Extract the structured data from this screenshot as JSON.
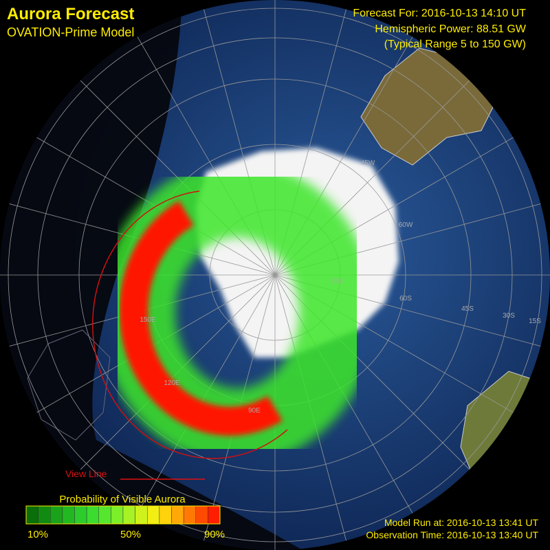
{
  "header": {
    "title": "Aurora Forecast",
    "subtitle": "OVATION-Prime Model",
    "forecast": "Forecast For: 2016-10-13 14:10 UT",
    "power": "Hemispheric Power: 88.51 GW",
    "range": "(Typical Range 5 to 150 GW)"
  },
  "map": {
    "labels": [
      "75S",
      "60S",
      "45S",
      "30S",
      "15S",
      "150E",
      "120E",
      "90E",
      "45W",
      "60W"
    ],
    "view_line": "View Line"
  },
  "legend": {
    "title": "Probability of Visible Aurora",
    "ticks": [
      "10%",
      "50%",
      "90%"
    ],
    "colors": [
      "#0a6e0a",
      "#118a11",
      "#1aa31a",
      "#22b822",
      "#2ccc2c",
      "#3bdc2f",
      "#55e62d",
      "#7cee2a",
      "#a6f224",
      "#cff21c",
      "#f2ee14",
      "#ffd20c",
      "#ffa808",
      "#ff7a04",
      "#ff4a02",
      "#ff1e00"
    ]
  },
  "footer": {
    "model_run": "Model Run at: 2016-10-13 13:41 UT",
    "observation": "Observation Time: 2016-10-13 13:40 UT"
  }
}
